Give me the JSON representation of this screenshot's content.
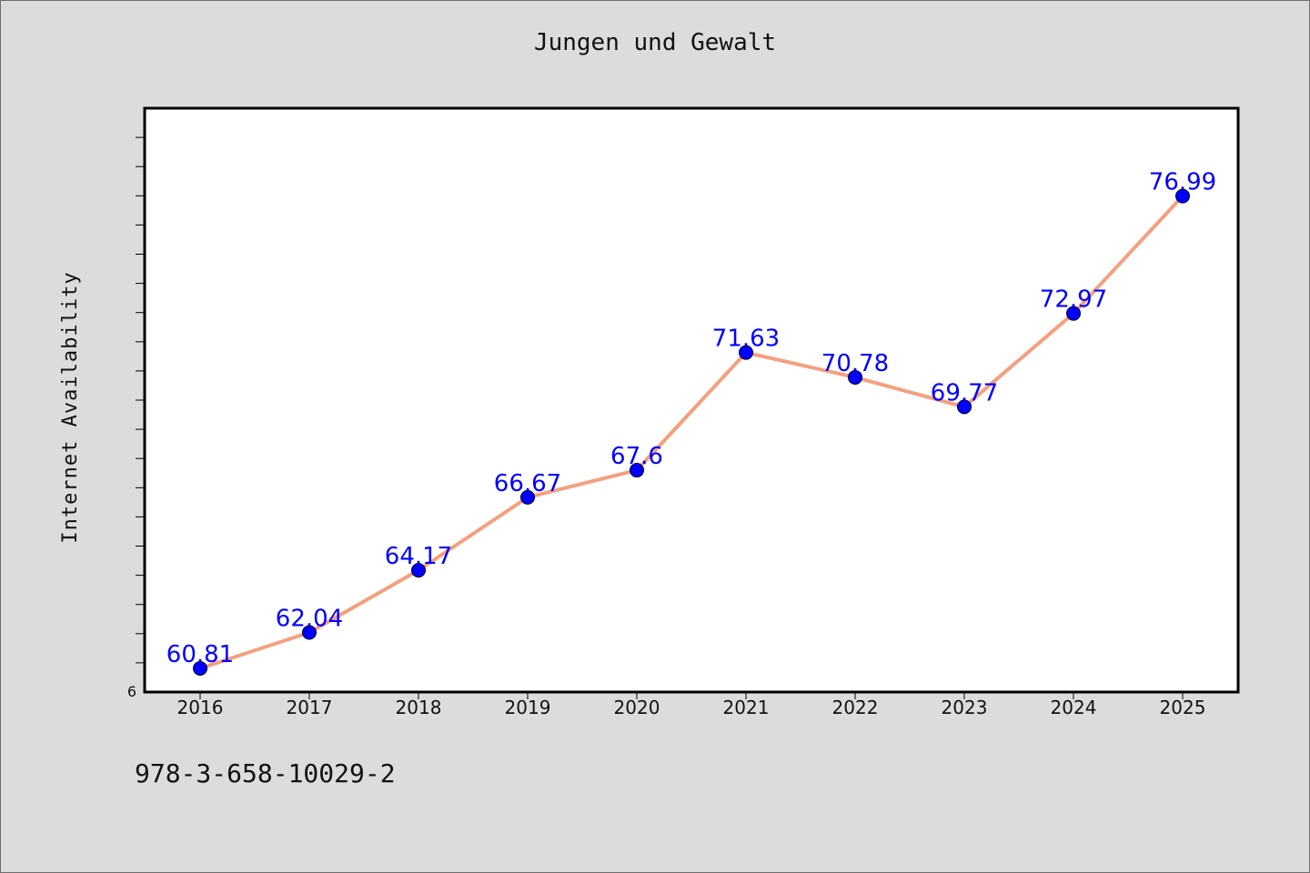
{
  "chart_data": {
    "type": "line",
    "title": "Jungen und Gewalt",
    "xlabel": "",
    "ylabel": "Internet Availability",
    "categories": [
      "2016",
      "2017",
      "2018",
      "2019",
      "2020",
      "2021",
      "2022",
      "2023",
      "2024",
      "2025"
    ],
    "series": [
      {
        "values": [
          60.81,
          62.04,
          64.17,
          66.67,
          67.6,
          71.63,
          70.78,
          69.77,
          72.97,
          76.99
        ],
        "data_labels": [
          "60.81",
          "62.04",
          "64.17",
          "66.67",
          "67.6",
          "71.63",
          "70.78",
          "69.77",
          "72.97",
          "76.99"
        ],
        "line_color": "#f4a07e",
        "marker_color": "#0000ff"
      }
    ],
    "ylim": [
      60,
      80
    ],
    "y_tick_labels": [
      "6"
    ],
    "grid": false,
    "legend": "none"
  },
  "footer": {
    "isbn": "978-3-658-10029-2"
  }
}
